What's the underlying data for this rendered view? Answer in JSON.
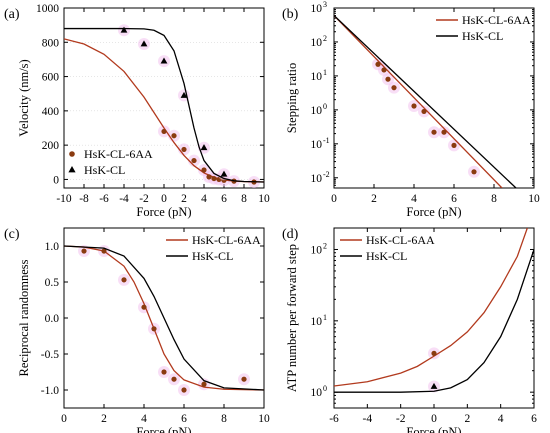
{
  "colors": {
    "cl6aa": "#b23a1e",
    "cl": "#000000",
    "halo": "#f3c3ee",
    "cl6aa_marker": "#8a3b10"
  },
  "chart_data": [
    {
      "id": "a",
      "type": "scatter",
      "panel_label": "(a)",
      "xlabel": "Force (pN)",
      "ylabel": "Velocity (nm/s)",
      "xlim": [
        -10,
        10
      ],
      "ylim": [
        -50,
        1000
      ],
      "xticks": [
        -10,
        -8,
        -6,
        -4,
        -2,
        0,
        2,
        4,
        6,
        8,
        10
      ],
      "yticks": [
        0,
        200,
        400,
        600,
        800,
        1000
      ],
      "yscale": "linear",
      "legend": "bottom-left",
      "series": [
        {
          "name": "HsK-CL-6AA",
          "marker": "circle",
          "points": [
            [
              0,
              280
            ],
            [
              1,
              255
            ],
            [
              2,
              175
            ],
            [
              3,
              110
            ],
            [
              4,
              55
            ],
            [
              4.5,
              15
            ],
            [
              5,
              5
            ],
            [
              5.5,
              0
            ],
            [
              6,
              -5
            ],
            [
              7,
              -10
            ],
            [
              9,
              -15
            ]
          ],
          "curve": [
            [
              -10,
              820
            ],
            [
              -8,
              790
            ],
            [
              -6,
              730
            ],
            [
              -4,
              630
            ],
            [
              -2,
              480
            ],
            [
              0,
              300
            ],
            [
              1,
              215
            ],
            [
              2,
              140
            ],
            [
              3,
              80
            ],
            [
              4,
              38
            ],
            [
              5,
              12
            ],
            [
              6,
              -3
            ],
            [
              7,
              -10
            ],
            [
              8,
              -13
            ],
            [
              10,
              -15
            ]
          ]
        },
        {
          "name": "HsK-CL",
          "marker": "triangle",
          "points": [
            [
              -4,
              870
            ],
            [
              -2,
              790
            ],
            [
              0,
              690
            ],
            [
              2,
              490
            ],
            [
              4,
              185
            ],
            [
              6,
              30
            ]
          ],
          "curve": [
            [
              -10,
              880
            ],
            [
              -4,
              880
            ],
            [
              -2,
              878
            ],
            [
              -1,
              870
            ],
            [
              0,
              840
            ],
            [
              1,
              750
            ],
            [
              2,
              560
            ],
            [
              3,
              300
            ],
            [
              3.5,
              190
            ],
            [
              4,
              110
            ],
            [
              5,
              35
            ],
            [
              6,
              5
            ],
            [
              7,
              -8
            ],
            [
              8,
              -12
            ],
            [
              10,
              -15
            ]
          ]
        }
      ]
    },
    {
      "id": "b",
      "type": "scatter",
      "panel_label": "(b)",
      "xlabel": "Force (pN)",
      "ylabel": "Stepping ratio",
      "xlim": [
        0,
        10
      ],
      "ylim": [
        0.005,
        1000
      ],
      "xticks": [
        0,
        2,
        4,
        6,
        8,
        10
      ],
      "yticks": [
        0.01,
        0.1,
        1,
        10,
        100,
        1000
      ],
      "ytick_labels": [
        "10",
        "10",
        "10",
        "10",
        "10",
        "10"
      ],
      "ytick_exponents": [
        "-2",
        "-1",
        "0",
        "1",
        "2",
        "3"
      ],
      "yscale": "log",
      "legend": "top-right",
      "series": [
        {
          "name": "HsK-CL-6AA",
          "marker": "circle",
          "points": [
            [
              2.2,
              22
            ],
            [
              2.5,
              15
            ],
            [
              2.7,
              8
            ],
            [
              3,
              4.5
            ],
            [
              4,
              1.3
            ],
            [
              4.5,
              0.9
            ],
            [
              5,
              0.22
            ],
            [
              5.5,
              0.22
            ],
            [
              6,
              0.09
            ],
            [
              7,
              0.015
            ]
          ],
          "curve": [
            [
              0,
              600
            ],
            [
              8.4,
              0.005
            ]
          ]
        },
        {
          "name": "HsK-CL",
          "marker": "none",
          "points": [],
          "curve": [
            [
              0,
              600
            ],
            [
              9.1,
              0.005
            ]
          ]
        }
      ]
    },
    {
      "id": "c",
      "type": "scatter",
      "panel_label": "(c)",
      "xlabel": "Force (pN)",
      "ylabel": "Reciprocal randomness",
      "xlim": [
        0,
        10
      ],
      "ylim": [
        -1.25,
        1.25
      ],
      "xticks": [
        0,
        2,
        4,
        6,
        8,
        10
      ],
      "yticks": [
        -1.0,
        -0.5,
        0.0,
        0.5,
        1.0
      ],
      "ytick_labels": [
        "-1.0",
        "-0.5",
        "0.0",
        "0.5",
        "1.0"
      ],
      "yscale": "linear",
      "legend": "top-right",
      "series": [
        {
          "name": "HsK-CL-6AA",
          "marker": "circle",
          "points": [
            [
              1,
              0.93
            ],
            [
              2,
              0.93
            ],
            [
              3,
              0.53
            ],
            [
              4,
              0.15
            ],
            [
              4.5,
              -0.15
            ],
            [
              5,
              -0.75
            ],
            [
              5.5,
              -0.85
            ],
            [
              6,
              -1.0
            ],
            [
              7,
              -0.92
            ],
            [
              9,
              -0.85
            ]
          ],
          "curve": [
            [
              0,
              1.0
            ],
            [
              1,
              0.985
            ],
            [
              2,
              0.93
            ],
            [
              3,
              0.72
            ],
            [
              3.5,
              0.5
            ],
            [
              4,
              0.2
            ],
            [
              4.5,
              -0.15
            ],
            [
              5,
              -0.5
            ],
            [
              5.5,
              -0.73
            ],
            [
              6,
              -0.86
            ],
            [
              7,
              -0.96
            ],
            [
              8,
              -0.99
            ],
            [
              10,
              -1.0
            ]
          ]
        },
        {
          "name": "HsK-CL",
          "marker": "none",
          "points": [],
          "curve": [
            [
              0,
              1.0
            ],
            [
              2,
              0.97
            ],
            [
              3,
              0.86
            ],
            [
              4,
              0.55
            ],
            [
              4.5,
              0.3
            ],
            [
              5,
              0.0
            ],
            [
              5.5,
              -0.3
            ],
            [
              6,
              -0.57
            ],
            [
              7,
              -0.87
            ],
            [
              8,
              -0.97
            ],
            [
              10,
              -1.0
            ]
          ]
        }
      ]
    },
    {
      "id": "d",
      "type": "scatter",
      "panel_label": "(d)",
      "xlabel": "Force (pN)",
      "ylabel": "ATP number per forward step",
      "xlim": [
        -6,
        6
      ],
      "ylim": [
        0.6,
        200
      ],
      "xticks": [
        -6,
        -4,
        -2,
        0,
        2,
        4,
        6
      ],
      "yticks": [
        1,
        10,
        100
      ],
      "ytick_labels": [
        "10",
        "10",
        "10"
      ],
      "ytick_exponents": [
        "0",
        "1",
        "2"
      ],
      "yscale": "log",
      "legend": "top-left",
      "series": [
        {
          "name": "HsK-CL-6AA",
          "marker": "circle",
          "points": [
            [
              0,
              3.5
            ]
          ],
          "curve": [
            [
              -6,
              1.22
            ],
            [
              -4,
              1.4
            ],
            [
              -2,
              1.85
            ],
            [
              -1,
              2.3
            ],
            [
              0,
              3.2
            ],
            [
              1,
              4.5
            ],
            [
              2,
              7
            ],
            [
              3,
              13
            ],
            [
              4,
              30
            ],
            [
              5,
              80
            ],
            [
              5.6,
              200
            ]
          ]
        },
        {
          "name": "HsK-CL",
          "marker": "triangle",
          "points": [
            [
              0,
              1.2
            ]
          ],
          "curve": [
            [
              -6,
              1.0
            ],
            [
              -2,
              1.0
            ],
            [
              0,
              1.03
            ],
            [
              1,
              1.15
            ],
            [
              2,
              1.5
            ],
            [
              3,
              2.6
            ],
            [
              4,
              6
            ],
            [
              5,
              20
            ],
            [
              6,
              100
            ]
          ]
        }
      ]
    }
  ]
}
